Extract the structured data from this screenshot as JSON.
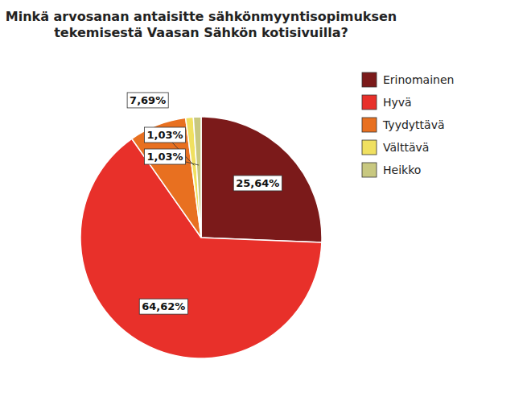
{
  "chart_data": {
    "type": "pie",
    "title": "Minkä arvosanan antaisitte sähkönmyyntisopimuksen\ntekemisestä Vaasan Sähkön kotisivuilla?",
    "categories": [
      "Erinomainen",
      "Hyvä",
      "Tyydyttävä",
      "Välttävä",
      "Heikko"
    ],
    "values": [
      25.64,
      64.62,
      7.69,
      1.03,
      1.03
    ],
    "value_labels": [
      "25,64%",
      "64,62%",
      "7,69%",
      "1,03%",
      "1,03%"
    ],
    "colors": [
      "#7B1A1A",
      "#E8302A",
      "#E87020",
      "#F0E060",
      "#C8C880"
    ],
    "data_labels": true,
    "legend": "upper right"
  }
}
